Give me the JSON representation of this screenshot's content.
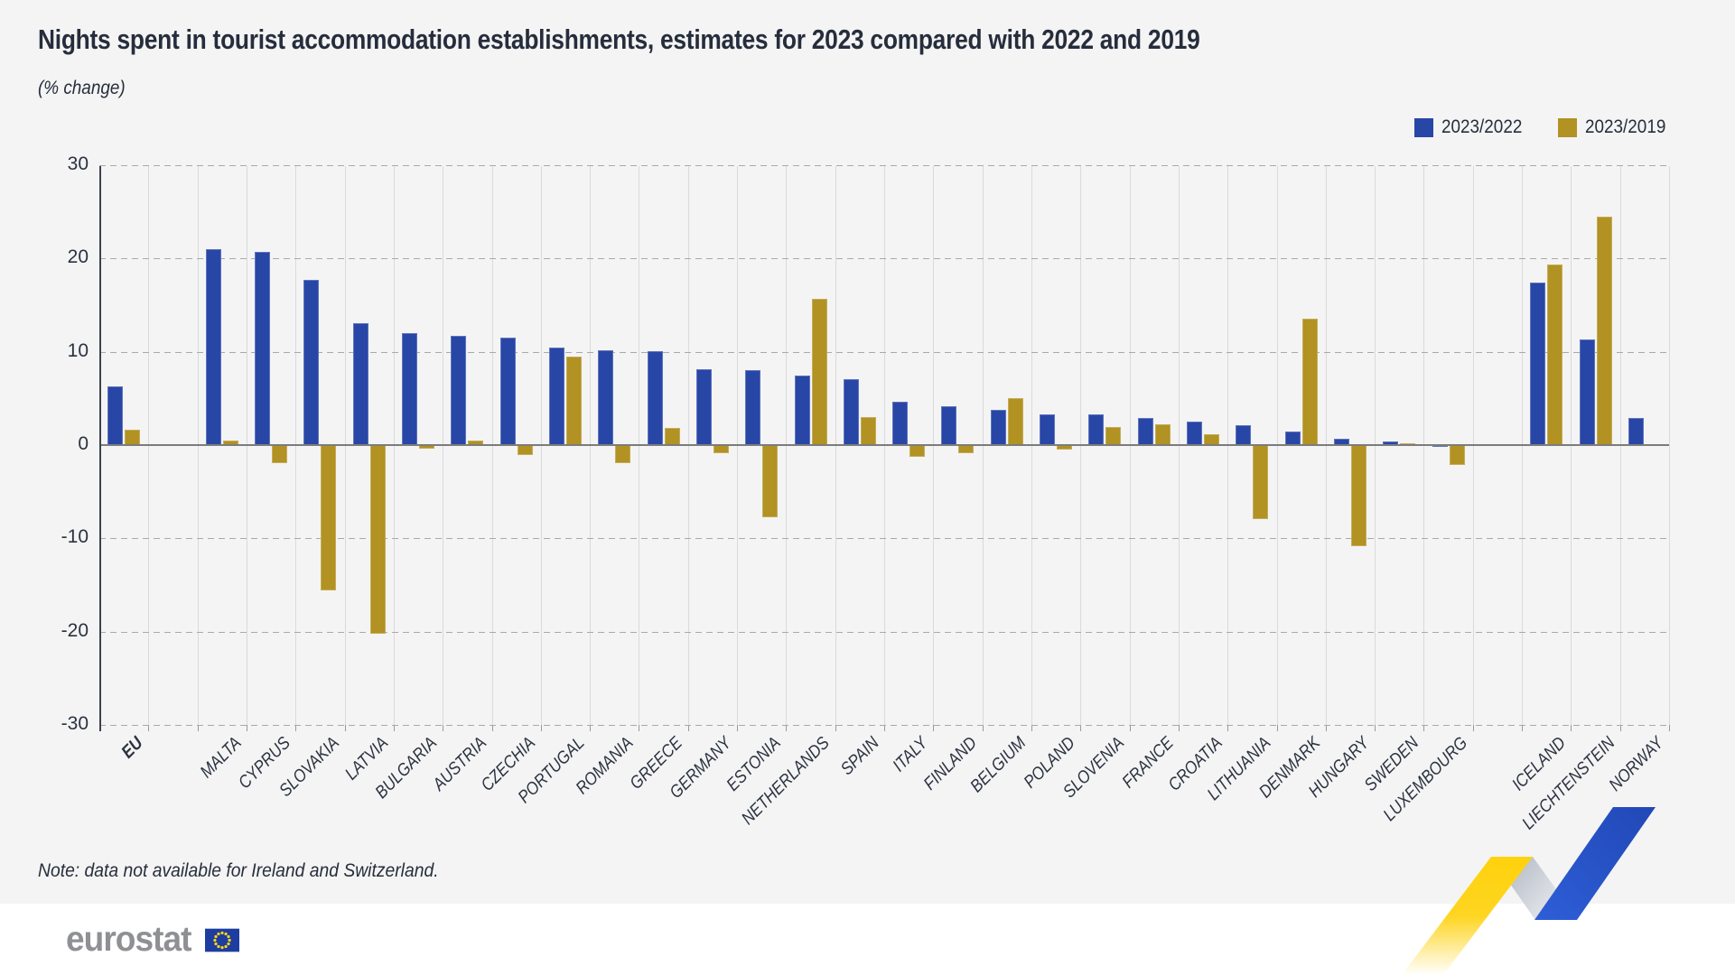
{
  "title": "Nights spent in tourist accommodation establishments, estimates for 2023 compared with 2022 and 2019",
  "subtitle": "(% change)",
  "note": "Note: data not available for Ireland and Switzerland.",
  "logo": {
    "text": "eurostat"
  },
  "legend": {
    "items": [
      {
        "label": "2023/2022",
        "color": "#2846a6"
      },
      {
        "label": "2023/2019",
        "color": "#b19222"
      }
    ]
  },
  "colors": {
    "background": "#f4f4f4",
    "ink": "#262d3c",
    "bar_blue": "#2846a6",
    "bar_gold": "#b19222",
    "grid_dashed": "#a9a9a9",
    "grid_vertical": "#dadada",
    "zero_line": "#7c7c7c",
    "axis_line": "#3b4150",
    "logo_gray": "#8e9094",
    "flag_blue": "#1d3d9f",
    "star_yellow": "#ffd617",
    "ribbon_blue": "#2653c8",
    "ribbon_yellow": "#ffd20d",
    "ribbon_gray": "#b6bcc8"
  },
  "chart_data": {
    "type": "bar",
    "title": "Nights spent in tourist accommodation establishments, estimates for 2023 compared with 2022 and 2019",
    "subtitle": "(% change)",
    "ylabel": "% change",
    "ylim": [
      -30,
      30
    ],
    "yticks": [
      30,
      20,
      10,
      0,
      -10,
      -20,
      -30
    ],
    "ytick_labels": [
      "30",
      "20",
      "10",
      "0",
      "-10",
      "-20",
      "-30"
    ],
    "grid": "horizontal dashed, vertical light category separators",
    "legend_position": "top-right",
    "gaps_after": [
      "EU",
      "LUXEMBOURG"
    ],
    "categories": [
      "EU",
      "MALTA",
      "CYPRUS",
      "SLOVAKIA",
      "LATVIA",
      "BULGARIA",
      "AUSTRIA",
      "CZECHIA",
      "PORTUGAL",
      "ROMANIA",
      "GREECE",
      "GERMANY",
      "ESTONIA",
      "NETHERLANDS",
      "SPAIN",
      "ITALY",
      "FINLAND",
      "BELGIUM",
      "POLAND",
      "SLOVENIA",
      "FRANCE",
      "CROATIA",
      "LITHUANIA",
      "DENMARK",
      "HUNGARY",
      "SWEDEN",
      "LUXEMBOURG",
      "ICELAND",
      "LIECHTENSTEIN",
      "NORWAY"
    ],
    "series": [
      {
        "name": "2023/2022",
        "color": "#2846a6",
        "values": [
          6.3,
          21.0,
          20.7,
          17.7,
          13.1,
          12.0,
          11.7,
          11.5,
          10.5,
          10.2,
          10.1,
          8.1,
          8.0,
          7.5,
          7.1,
          4.6,
          4.2,
          3.8,
          3.3,
          3.3,
          2.9,
          2.5,
          2.1,
          1.5,
          0.7,
          0.4,
          -0.2,
          17.4,
          11.3,
          2.9
        ]
      },
      {
        "name": "2023/2019",
        "color": "#b19222",
        "values": [
          1.6,
          0.5,
          -1.9,
          -15.6,
          -20.2,
          -0.4,
          0.5,
          -1.1,
          9.5,
          -1.9,
          1.8,
          -0.9,
          -7.7,
          15.7,
          3.0,
          -1.3,
          -0.9,
          5.0,
          -0.5,
          1.9,
          2.2,
          1.2,
          -7.9,
          13.6,
          -10.8,
          0.2,
          -2.1,
          19.4,
          24.5,
          0.0
        ]
      }
    ]
  }
}
